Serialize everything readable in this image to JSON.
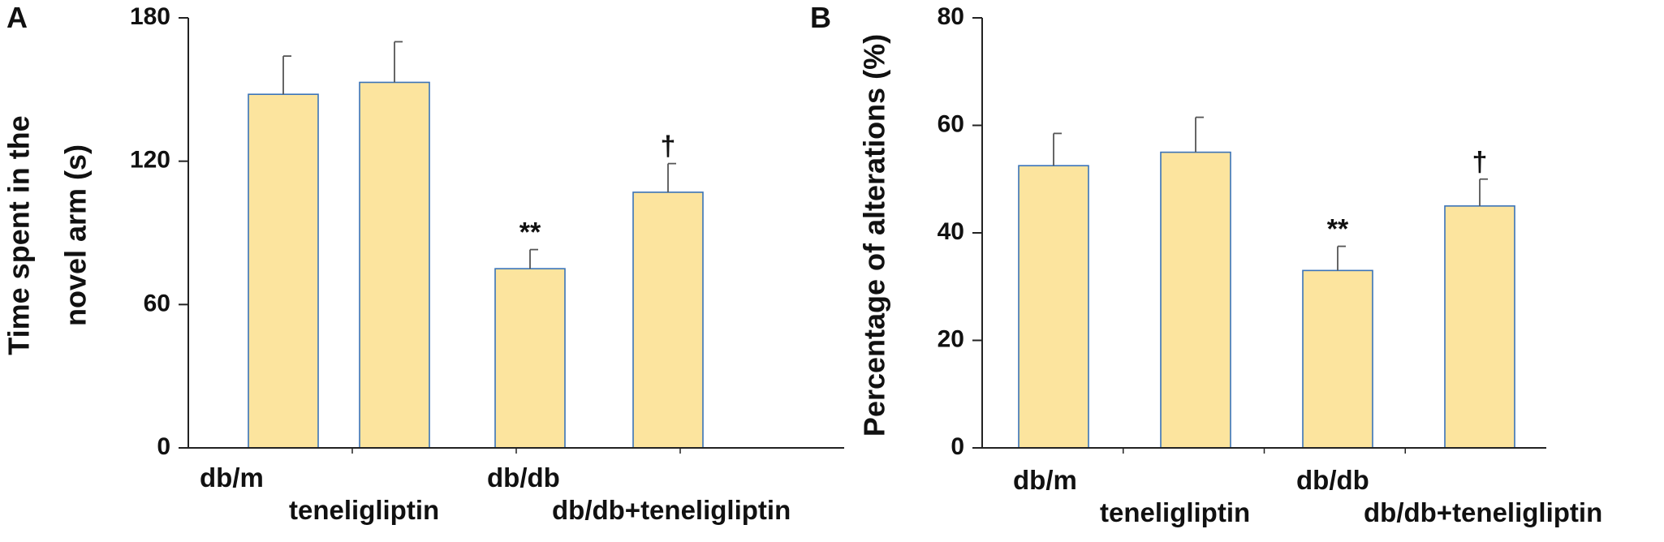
{
  "colors": {
    "bar_fill": "#FCE49E",
    "bar_stroke": "#3A73B8",
    "axis": "#222222",
    "error_bar": "#555555"
  },
  "chart_data": [
    {
      "type": "bar",
      "panel": "A",
      "ylabel": "Time spent in the novel arm (s)",
      "ylabel_lines": [
        "Time spent in the",
        "novel arm (s)"
      ],
      "categories": [
        "db/m",
        "teneligliptin",
        "db/db",
        "db/db+teneligliptin"
      ],
      "values": [
        148,
        153,
        75,
        107
      ],
      "errors": [
        16,
        17,
        8,
        12
      ],
      "annotations": [
        "",
        "",
        "**",
        "†"
      ],
      "ylim": [
        0,
        180
      ],
      "yticks": [
        "0",
        "60",
        "120",
        "180"
      ],
      "grid": false,
      "legend": "none"
    },
    {
      "type": "bar",
      "panel": "B",
      "ylabel": "Percentage of alterations (%)",
      "ylabel_lines": [
        "Percentage of alterations (%)"
      ],
      "categories": [
        "db/m",
        "teneligliptin",
        "db/db",
        "db/db+teneligliptin"
      ],
      "values": [
        52.5,
        55,
        33,
        45
      ],
      "errors": [
        6,
        6.5,
        4.5,
        5
      ],
      "annotations": [
        "",
        "",
        "**",
        "†"
      ],
      "ylim": [
        0,
        80
      ],
      "yticks": [
        "0",
        "20",
        "40",
        "60",
        "80"
      ],
      "grid": false,
      "legend": "none"
    }
  ]
}
